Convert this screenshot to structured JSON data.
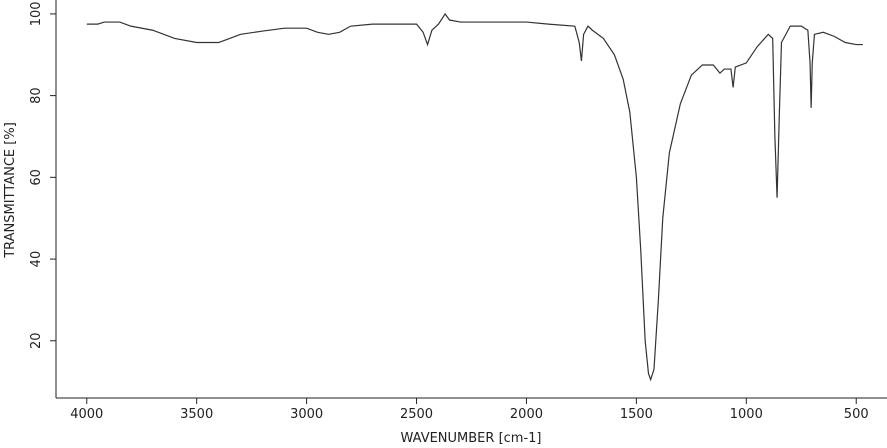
{
  "chart_data": {
    "type": "line",
    "x_label": "WAVENUMBER [cm-1]",
    "y_label": "TRANSMITTANCE [%]",
    "xlim": [
      4140,
      360
    ],
    "ylim": [
      6,
      103.4
    ],
    "xticks": [
      4000,
      3500,
      3000,
      2500,
      2000,
      1500,
      1000,
      500
    ],
    "yticks": [
      20,
      40,
      60,
      80,
      100
    ],
    "series": [
      {
        "color": "#333333",
        "x": [
          4000,
          3950,
          3920,
          3850,
          3800,
          3700,
          3600,
          3500,
          3400,
          3350,
          3300,
          3200,
          3100,
          3000,
          2950,
          2900,
          2850,
          2800,
          2700,
          2500,
          2470,
          2450,
          2430,
          2400,
          2370,
          2350,
          2300,
          2200,
          2000,
          1900,
          1780,
          1760,
          1750,
          1740,
          1720,
          1700,
          1650,
          1600,
          1560,
          1530,
          1500,
          1480,
          1460,
          1445,
          1435,
          1420,
          1400,
          1380,
          1350,
          1300,
          1250,
          1200,
          1150,
          1120,
          1100,
          1070,
          1060,
          1050,
          1000,
          950,
          900,
          880,
          870,
          860,
          850,
          840,
          800,
          750,
          720,
          710,
          705,
          700,
          690,
          650,
          600,
          550,
          500,
          470
        ],
        "values": [
          97.5,
          97.5,
          98,
          98,
          97,
          96,
          94,
          93,
          93,
          94,
          95,
          95.8,
          96.5,
          96.5,
          95.5,
          95,
          95.5,
          97,
          97.5,
          97.5,
          95.5,
          92.5,
          96,
          97.5,
          100,
          98.5,
          98,
          98,
          98,
          97.5,
          97,
          93,
          88.5,
          95,
          97,
          96,
          94,
          90,
          84,
          76,
          60,
          42,
          20,
          12,
          10.5,
          13,
          30,
          50,
          66,
          78,
          85,
          87.5,
          87.5,
          85.5,
          86.5,
          86.5,
          82,
          87,
          88,
          92,
          95,
          94,
          70,
          55,
          75,
          93,
          97,
          97,
          96,
          88,
          77,
          88,
          95,
          95.5,
          94.5,
          93,
          92.5,
          92.5
        ]
      }
    ]
  }
}
